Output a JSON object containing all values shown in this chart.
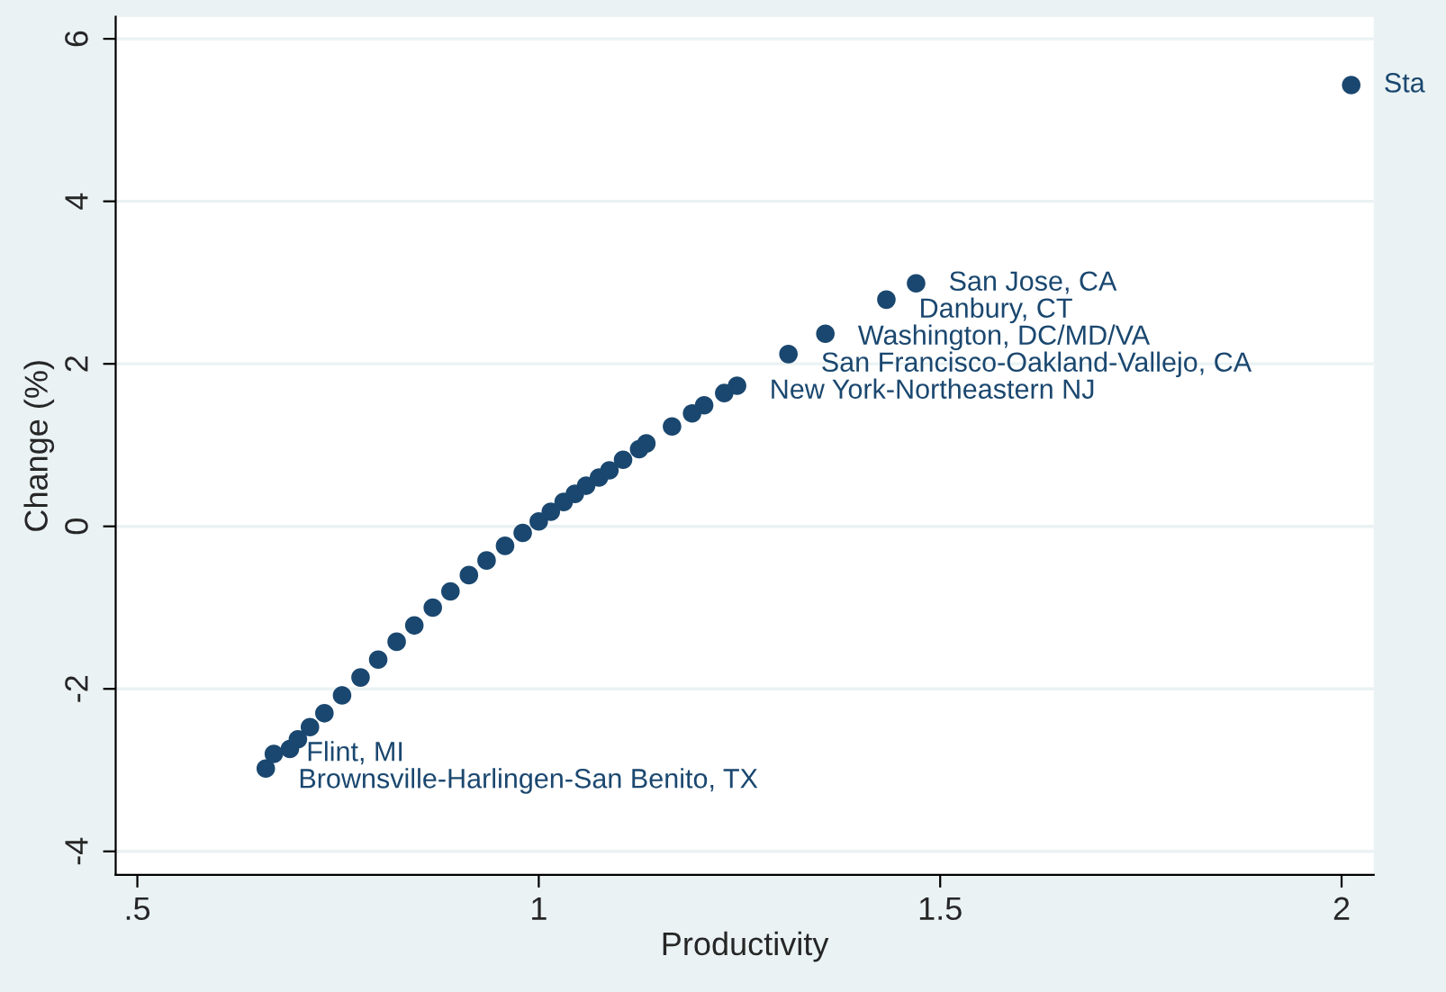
{
  "chart_data": {
    "type": "scatter",
    "xlabel": "Productivity",
    "ylabel": "Change (%)",
    "xlim": [
      0.473,
      2.04
    ],
    "ylim": [
      -4.29,
      6.27
    ],
    "xticks": [
      {
        "value": 0.5,
        "label": ".5"
      },
      1,
      1.5,
      2
    ],
    "yticks": [
      -4,
      -2,
      0,
      2,
      4,
      6
    ],
    "grid": "y",
    "marker": "circle",
    "legend": false,
    "series": [
      {
        "color": "#1a476f",
        "x": [
          0.66,
          0.67,
          0.69,
          0.7,
          0.715,
          0.733,
          0.755,
          0.778,
          0.8,
          0.823,
          0.845,
          0.868,
          0.89,
          0.913,
          0.935,
          0.958,
          0.98,
          1.0,
          1.015,
          1.031,
          1.045,
          1.059,
          1.075,
          1.088,
          1.105,
          1.125,
          1.134,
          1.166,
          1.191,
          1.206,
          1.231,
          1.247,
          1.311,
          1.357,
          1.433,
          1.47,
          2.012
        ],
        "values": [
          -2.98,
          -2.8,
          -2.74,
          -2.62,
          -2.47,
          -2.3,
          -2.08,
          -1.86,
          -1.64,
          -1.42,
          -1.22,
          -1.0,
          -0.8,
          -0.6,
          -0.42,
          -0.24,
          -0.08,
          0.06,
          0.18,
          0.3,
          0.4,
          0.5,
          0.6,
          0.69,
          0.82,
          0.95,
          1.02,
          1.23,
          1.39,
          1.49,
          1.64,
          1.73,
          2.12,
          2.37,
          2.79,
          2.99,
          5.43
        ]
      }
    ],
    "annotations": [
      {
        "text": "Sta",
        "x": 2.012,
        "y": 5.43
      },
      {
        "text": "San Jose, CA",
        "x": 1.47,
        "y": 2.99
      },
      {
        "text": "Danbury, CT",
        "x": 1.433,
        "y": 2.79
      },
      {
        "text": "Washington, DC/MD/VA",
        "x": 1.357,
        "y": 2.37
      },
      {
        "text": "San Francisco-Oakland-Vallejo, CA",
        "x": 1.311,
        "y": 2.12
      },
      {
        "text": "New York-Northeastern NJ",
        "x": 1.247,
        "y": 1.73
      },
      {
        "text": "Flint, MI",
        "x": 0.67,
        "y": -2.8
      },
      {
        "text": "Brownsville-Harlingen-San Benito, TX",
        "x": 0.66,
        "y": -2.98
      }
    ]
  }
}
